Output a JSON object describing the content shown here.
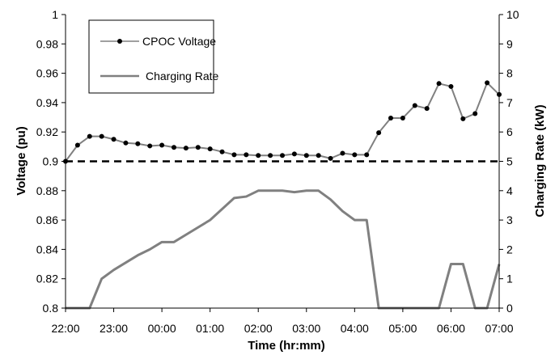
{
  "chart_data": {
    "type": "line",
    "title": "",
    "xlabel": "Time (hr:mm)",
    "ylabel_left": "Voltage (pu)",
    "ylabel_right": "Charging Rate (kW)",
    "x_ticks": [
      "22:00",
      "23:00",
      "00:00",
      "01:00",
      "02:00",
      "03:00",
      "04:00",
      "05:00",
      "06:00",
      "07:00"
    ],
    "x_range_hours": [
      22,
      31
    ],
    "y_left_range": [
      0.8,
      1.0
    ],
    "y_left_ticks": [
      "0.8",
      "0.82",
      "0.84",
      "0.86",
      "0.88",
      "0.9",
      "0.92",
      "0.94",
      "0.96",
      "0.98",
      "1"
    ],
    "y_right_range": [
      0,
      10
    ],
    "y_right_ticks": [
      "0",
      "1",
      "2",
      "3",
      "4",
      "5",
      "6",
      "7",
      "8",
      "9",
      "10"
    ],
    "grid": false,
    "legend_position": "top-left",
    "reference_line": {
      "axis": "left",
      "value": 0.9,
      "style": "dashed",
      "color": "#000000"
    },
    "series": [
      {
        "name": "CPOC Voltage",
        "axis": "left",
        "color": "#000000",
        "line_color": "#808080",
        "marker": "circle",
        "x": [
          22.0,
          22.25,
          22.5,
          22.75,
          23.0,
          23.25,
          23.5,
          23.75,
          24.0,
          24.25,
          24.5,
          24.75,
          25.0,
          25.25,
          25.5,
          25.75,
          26.0,
          26.25,
          26.5,
          26.75,
          27.0,
          27.25,
          27.5,
          27.75,
          28.0,
          28.25,
          28.5,
          28.75,
          29.0,
          29.25,
          29.5,
          29.75,
          30.0,
          30.25,
          30.5,
          30.75,
          31.0
        ],
        "values": [
          0.9,
          0.911,
          0.917,
          0.917,
          0.915,
          0.9125,
          0.912,
          0.9105,
          0.911,
          0.9095,
          0.909,
          0.9095,
          0.9085,
          0.9065,
          0.9045,
          0.9045,
          0.904,
          0.904,
          0.904,
          0.905,
          0.904,
          0.904,
          0.902,
          0.9055,
          0.9045,
          0.9045,
          0.9195,
          0.9295,
          0.9295,
          0.938,
          0.936,
          0.953,
          0.951,
          0.929,
          0.9325,
          0.9535,
          0.9455
        ]
      },
      {
        "name": "Charging Rate",
        "axis": "right",
        "color": "#808080",
        "marker": "none",
        "x": [
          22.0,
          22.5,
          22.75,
          23.0,
          23.5,
          23.75,
          24.0,
          24.25,
          24.5,
          25.0,
          25.5,
          25.75,
          26.0,
          26.25,
          26.5,
          26.75,
          27.0,
          27.25,
          27.5,
          27.75,
          28.0,
          28.25,
          28.5,
          28.75,
          29.0,
          29.25,
          29.5,
          29.75,
          30.0,
          30.25,
          30.5,
          30.75,
          31.0
        ],
        "values": [
          0,
          0,
          1.0,
          1.3,
          1.8,
          2.0,
          2.25,
          2.25,
          2.5,
          3.0,
          3.75,
          3.8,
          4.0,
          4.0,
          4.0,
          3.95,
          4.0,
          4.0,
          3.7,
          3.3,
          3.0,
          3.0,
          0,
          0,
          0,
          0,
          0,
          0,
          1.5,
          1.5,
          0,
          0,
          1.5
        ]
      }
    ]
  }
}
